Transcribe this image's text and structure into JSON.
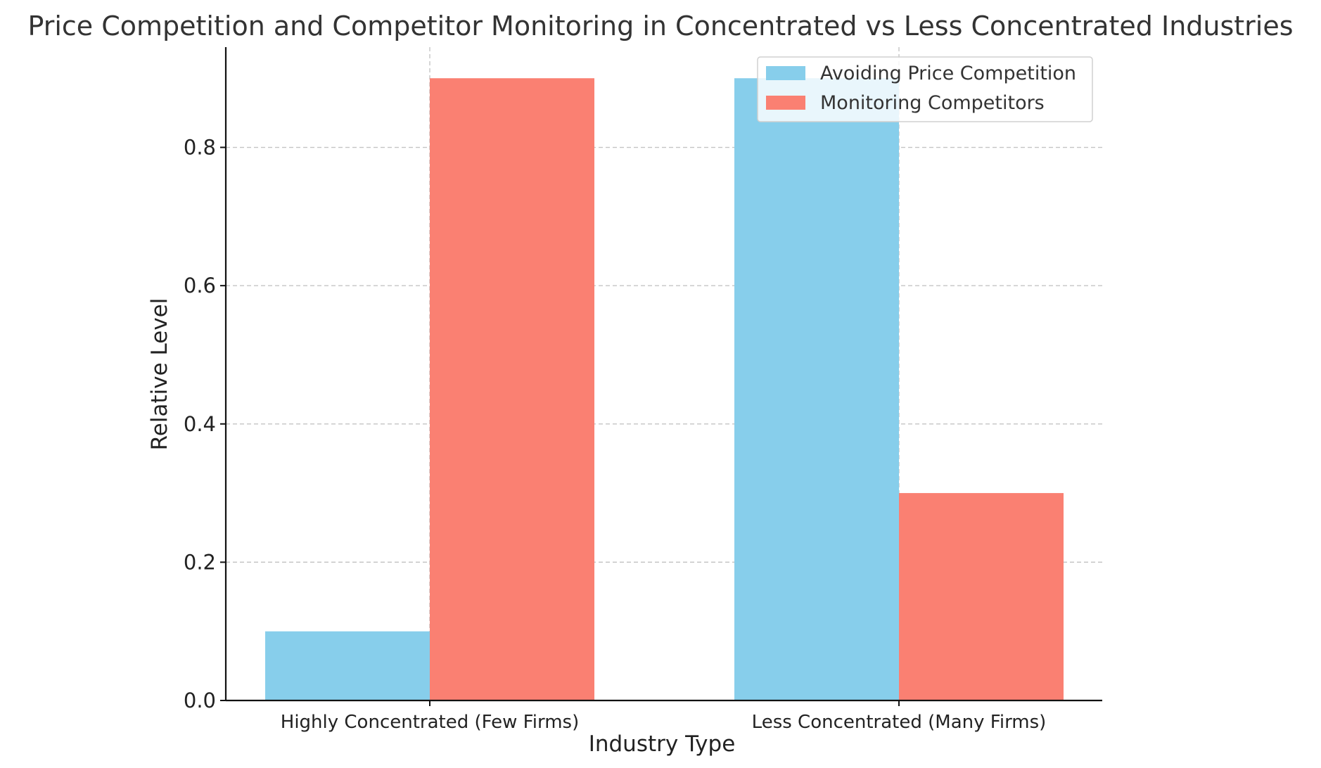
{
  "chart_data": {
    "type": "bar",
    "title": "Price Competition and Competitor Monitoring in Concentrated vs Less Concentrated Industries",
    "xlabel": "Industry Type",
    "ylabel": "Relative Level",
    "categories": [
      "Highly Concentrated (Few Firms)",
      "Less Concentrated (Many Firms)"
    ],
    "series": [
      {
        "name": "Avoiding Price Competition",
        "values": [
          0.1,
          0.9
        ],
        "color": "#87CEEB"
      },
      {
        "name": "Monitoring Competitors",
        "values": [
          0.9,
          0.3
        ],
        "color": "#FA8072"
      }
    ],
    "ylim": [
      0,
      0.945
    ],
    "yticks": [
      0.0,
      0.2,
      0.4,
      0.6,
      0.8
    ],
    "ytick_labels": [
      "0.0",
      "0.2",
      "0.4",
      "0.6",
      "0.8"
    ],
    "grid": true,
    "legend_position": "upper-right"
  }
}
